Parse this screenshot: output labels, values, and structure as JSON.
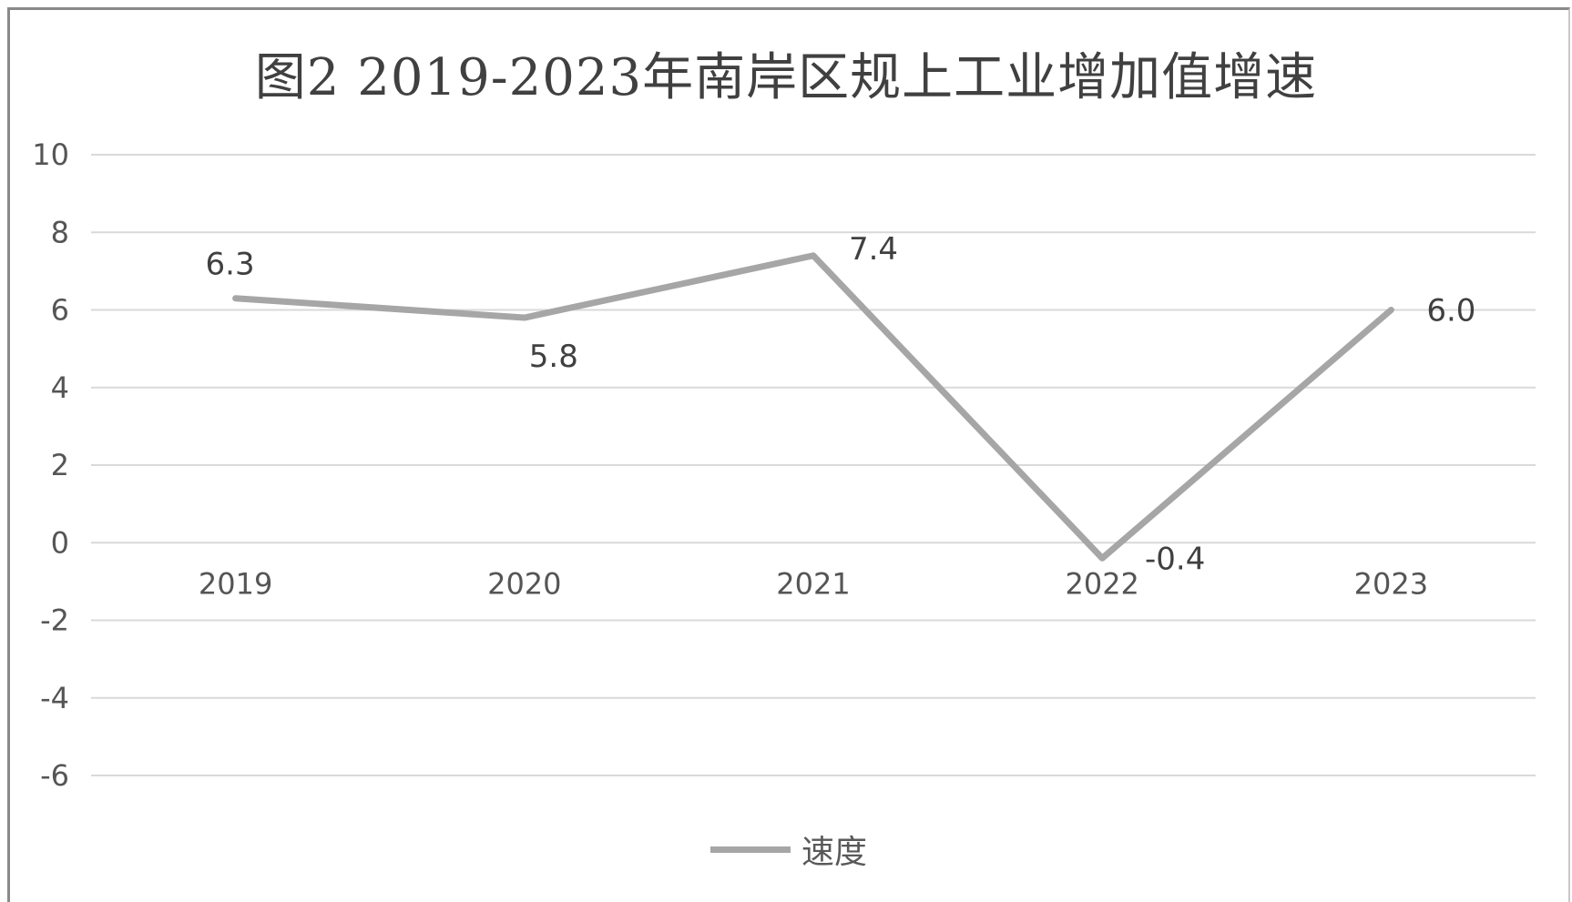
{
  "chart_data": {
    "type": "line",
    "title": "图2 2019-2023年南岸区规上工业增加值增速",
    "categories": [
      "2019",
      "2020",
      "2021",
      "2022",
      "2023"
    ],
    "series": [
      {
        "name": "速度",
        "values": [
          6.3,
          5.8,
          7.4,
          -0.4,
          6.0
        ],
        "data_labels": [
          "6.3",
          "5.8",
          "7.4",
          "-0.4",
          "6.0"
        ]
      }
    ],
    "ylim": [
      -6,
      10
    ],
    "yticks": [
      10,
      8,
      6,
      4,
      2,
      0,
      -2,
      -4,
      -6
    ],
    "xlabel": "",
    "ylabel": "",
    "grid": true,
    "legend": "bottom",
    "colors": {
      "line": "#a6a6a6",
      "grid": "#d9d9d9",
      "text": "#595959"
    }
  }
}
